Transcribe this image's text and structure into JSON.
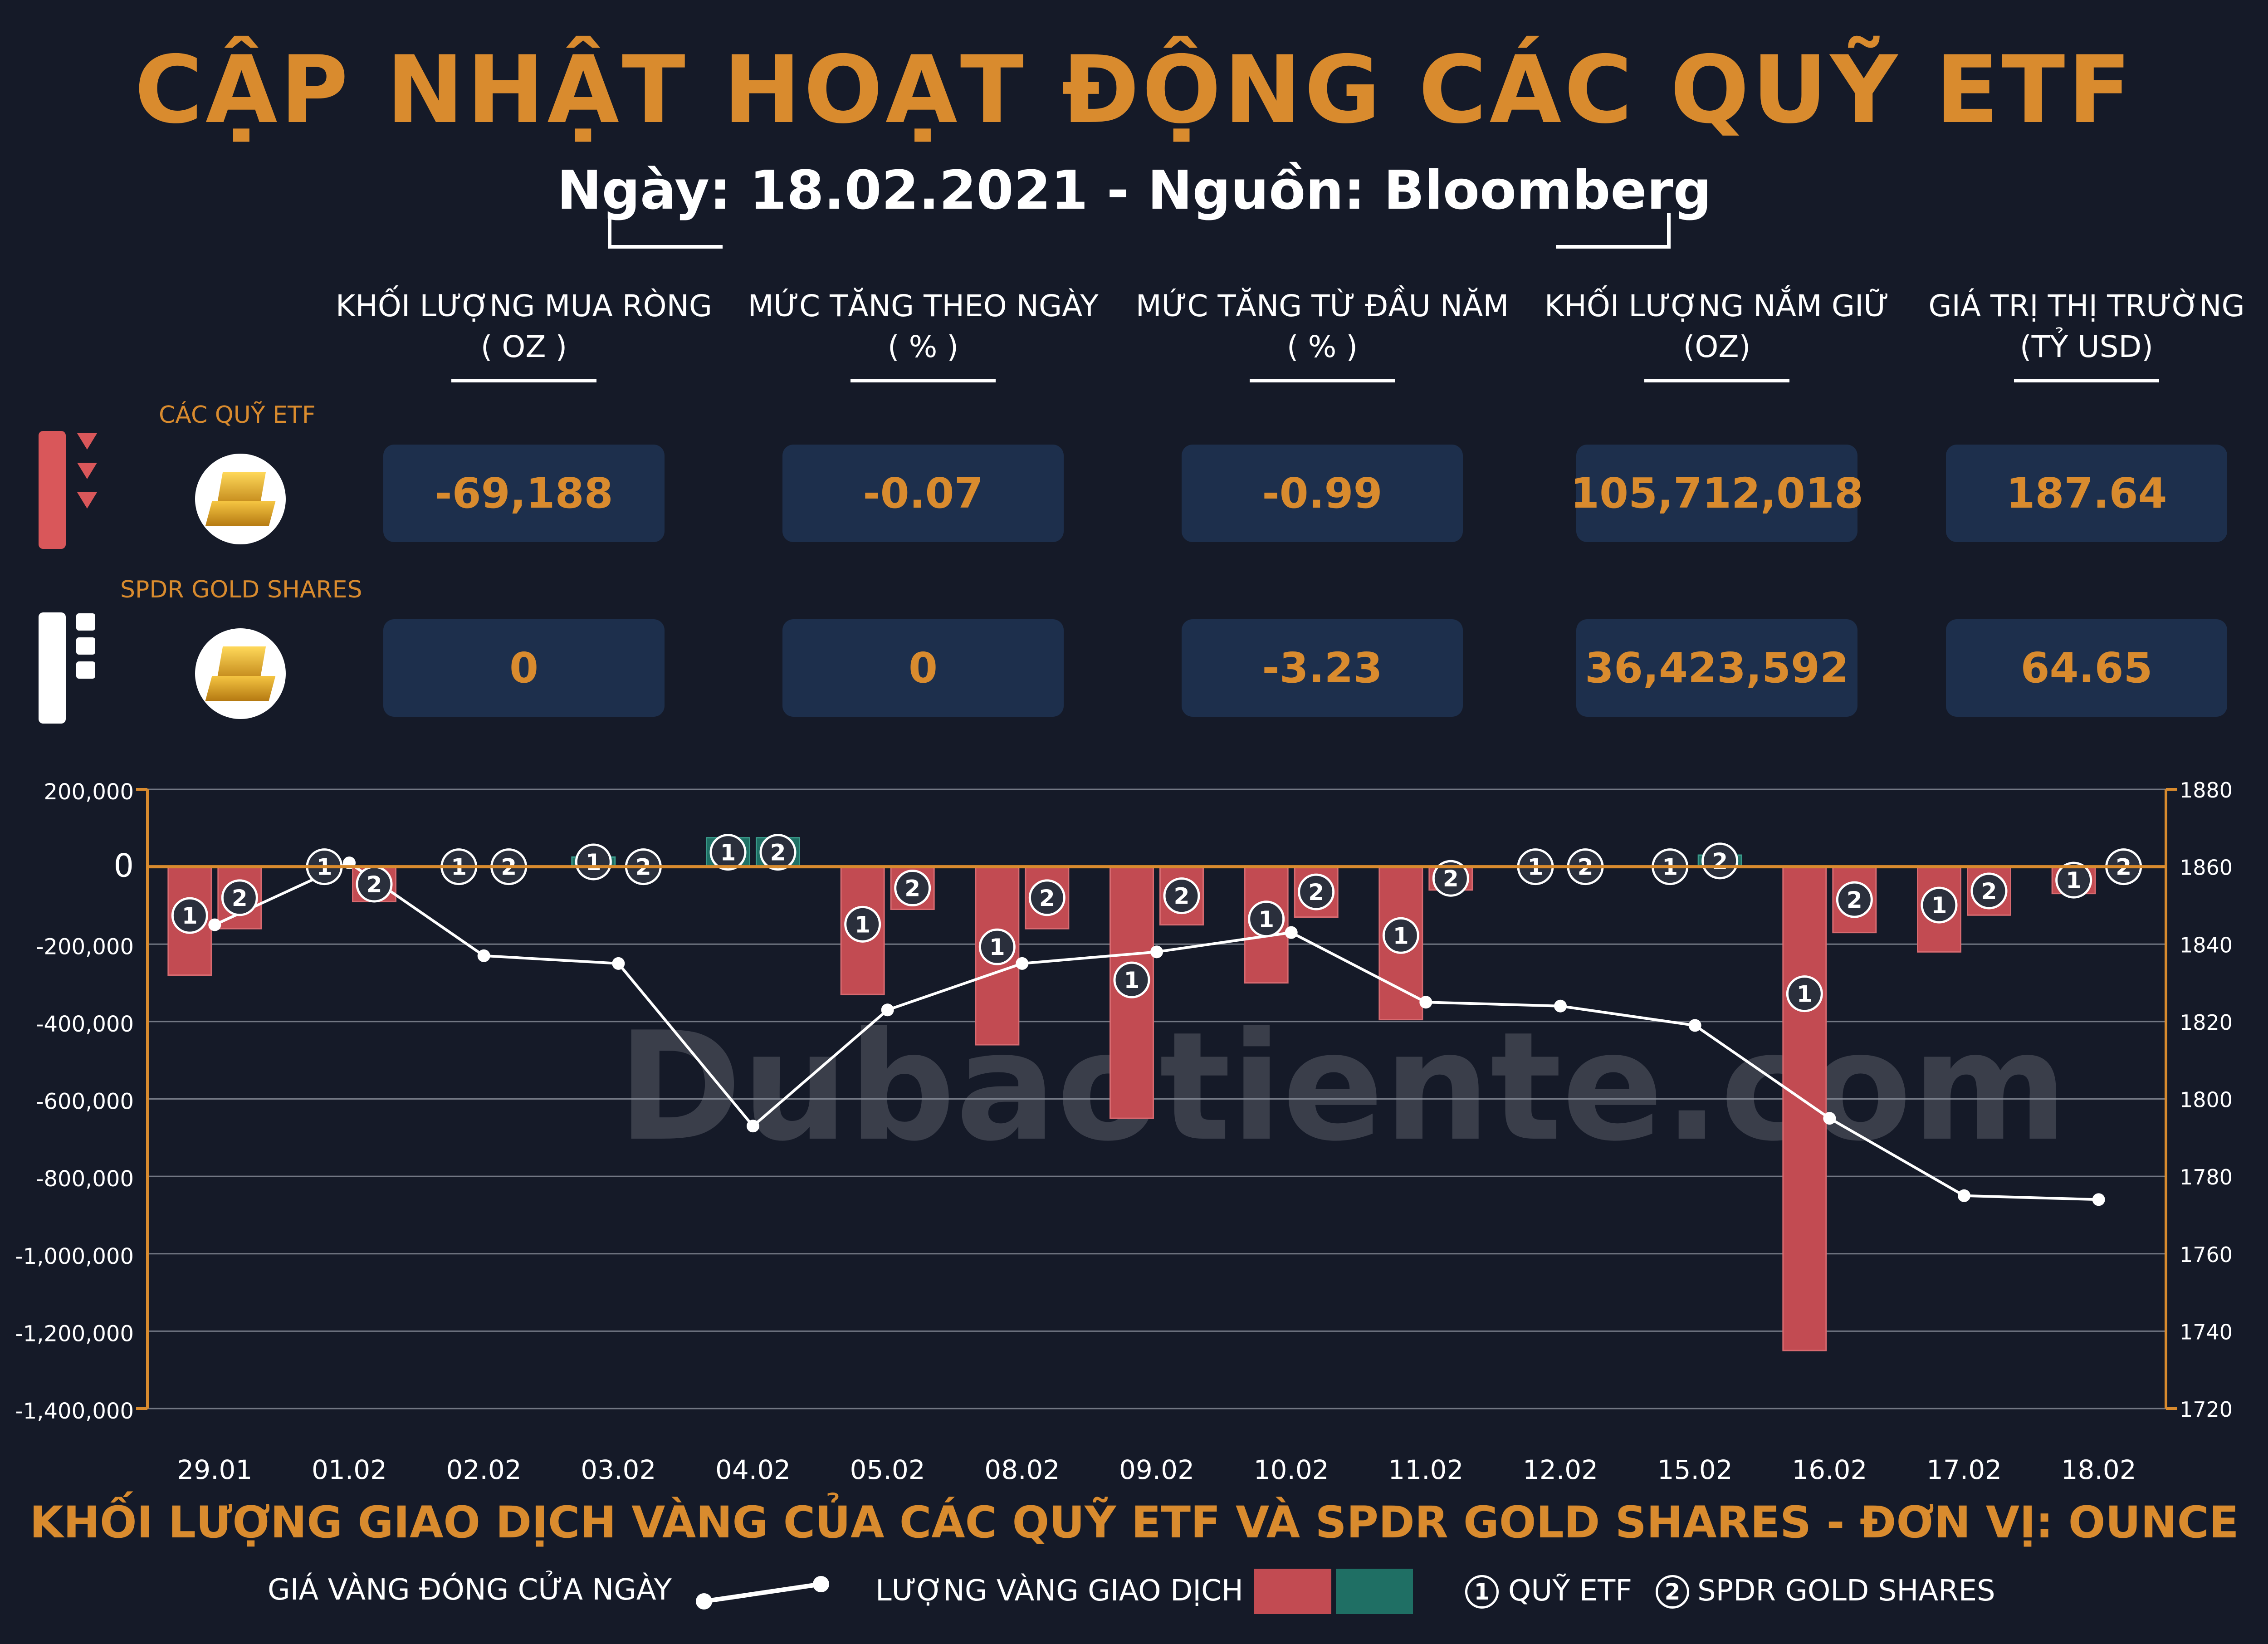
{
  "header": {
    "title": "CẬP NHẬT HOẠT ĐỘNG CÁC QUỸ ETF",
    "subtitle": "Ngày: 18.02.2021 - Nguồn: Bloomberg"
  },
  "table": {
    "columns": [
      {
        "line1": "KHỐI LƯỢNG MUA RÒNG",
        "line2": "( OZ )"
      },
      {
        "line1": "MỨC TĂNG THEO NGÀY",
        "line2": "( % )"
      },
      {
        "line1": "MỨC TĂNG TỪ ĐẦU NĂM",
        "line2": "( % )"
      },
      {
        "line1": "KHỐI LƯỢNG NẮM GIỮ",
        "line2": "(OZ)"
      },
      {
        "line1": "GIÁ TRỊ THỊ TRƯỜNG",
        "line2": "(TỶ USD)"
      }
    ],
    "rows": [
      {
        "label": "CÁC QUỸ ETF",
        "values": [
          "-69,188",
          "-0.07",
          "-0.99",
          "105,712,018",
          "187.64"
        ]
      },
      {
        "label": "SPDR GOLD SHARES",
        "values": [
          "0",
          "0",
          "-3.23",
          "36,423,592",
          "64.65"
        ]
      }
    ]
  },
  "watermark": "Dubaotiente.com",
  "chart_data": {
    "type": "bar",
    "categories": [
      "29.01",
      "01.02",
      "02.02",
      "03.02",
      "04.02",
      "05.02",
      "08.02",
      "09.02",
      "10.02",
      "11.02",
      "12.02",
      "15.02",
      "16.02",
      "17.02",
      "18.02"
    ],
    "series": [
      {
        "name": "QUỸ ETF",
        "values": [
          -280000,
          0,
          0,
          25000,
          75000,
          -330000,
          -460000,
          -650000,
          -300000,
          -395000,
          0,
          0,
          -1250000,
          -220000,
          -69188
        ]
      },
      {
        "name": "SPDR GOLD SHARES",
        "values": [
          -160000,
          -90000,
          0,
          0,
          75000,
          -110000,
          -160000,
          -150000,
          -130000,
          -60000,
          0,
          30000,
          -170000,
          -125000,
          0
        ]
      }
    ],
    "line": {
      "name": "GIÁ VÀNG ĐÓNG CỬA NGÀY",
      "values": [
        1845,
        1861,
        1837,
        1835,
        1793,
        1823,
        1835,
        1838,
        1843,
        1825,
        1824,
        1819,
        1795,
        1775,
        1774
      ]
    },
    "ylim": [
      -1400000,
      200000
    ],
    "yticks": [
      "200,000",
      "0",
      "-200,000",
      "-400,000",
      "-600,000",
      "-800,000",
      "-1,000,000",
      "-1,200,000",
      "-1,400,000"
    ],
    "y2lim": [
      1720,
      1880
    ],
    "y2ticks": [
      "1880",
      "1860",
      "1840",
      "1820",
      "1800",
      "1780",
      "1760",
      "1740",
      "1720"
    ],
    "caption": "KHỐI LƯỢNG GIAO DỊCH VÀNG CỦA CÁC QUỸ ETF VÀ SPDR GOLD SHARES - ĐƠN VỊ: OUNCE",
    "marker1": "1",
    "marker2": "2",
    "colors": {
      "negative": "#c24b52",
      "positive": "#1f6f64",
      "line": "#ffffff",
      "axis": "#d98b2e",
      "grid": "#8a8f9a"
    }
  },
  "legend": {
    "line_label": "GIÁ VÀNG ĐÓNG CỬA NGÀY",
    "bar_label": "LƯỢNG VÀNG GIAO DỊCH",
    "m1_num": "1",
    "m1_label": "QUỸ ETF",
    "m2_num": "2",
    "m2_label": "SPDR GOLD SHARES"
  }
}
